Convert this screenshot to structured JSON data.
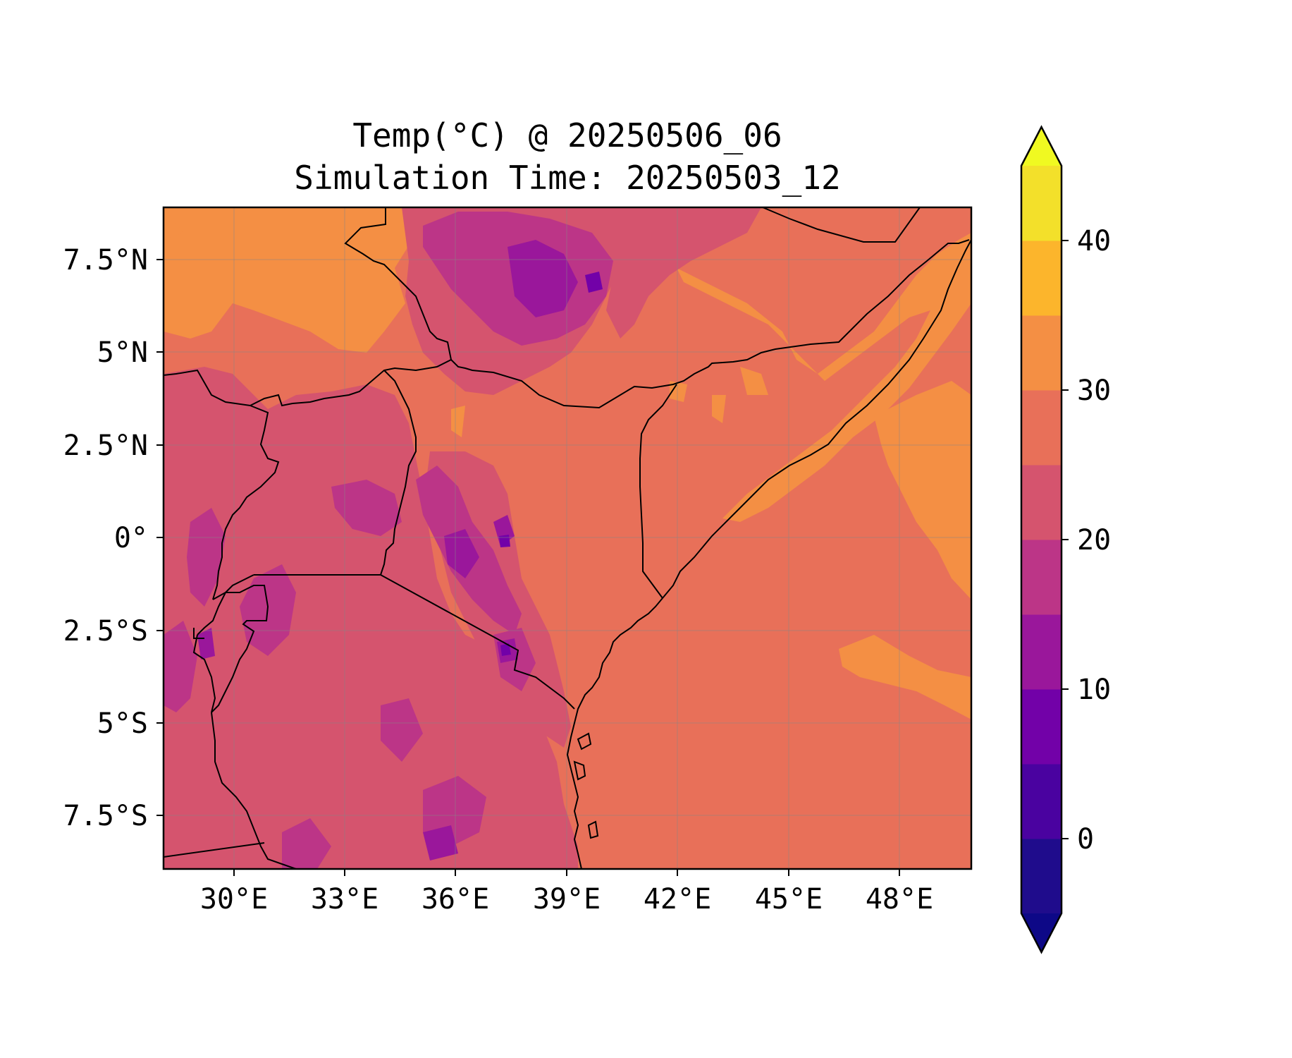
{
  "title": {
    "line1": "Temp(°C) @ 20250506_06",
    "line2": "Simulation Time: 20250503_12"
  },
  "chart_data": {
    "type": "heatmap",
    "variable": "Temp(°C)",
    "x_ticks": [
      "30°E",
      "33°E",
      "36°E",
      "39°E",
      "42°E",
      "45°E",
      "48°E"
    ],
    "y_ticks": [
      "7.5°N",
      "5°N",
      "2.5°N",
      "0°",
      "2.5°S",
      "5°S",
      "7.5°S"
    ],
    "lon_range": [
      28.1,
      49.9
    ],
    "lat_range": [
      -8.9,
      8.9
    ],
    "grid": true,
    "colorbar": {
      "placement": "right",
      "extend": "both",
      "levels": [
        -5,
        0,
        5,
        10,
        15,
        20,
        25,
        30,
        35,
        40,
        45
      ],
      "tick_labels": [
        "0",
        "10",
        "20",
        "30",
        "40"
      ],
      "tick_values": [
        0,
        10,
        20,
        30,
        40
      ],
      "colors": [
        "#1f0c8c",
        "#4a02a0",
        "#7201a8",
        "#9a179b",
        "#bc3587",
        "#d5546e",
        "#e87059",
        "#f48f44",
        "#fcb52c",
        "#f3e02a"
      ],
      "under_color": "#0d0887",
      "over_color": "#f0f921"
    },
    "dominant_values": {
      "ocean": "25–30",
      "lowlands": "25–35",
      "highlands": "10–25"
    }
  }
}
